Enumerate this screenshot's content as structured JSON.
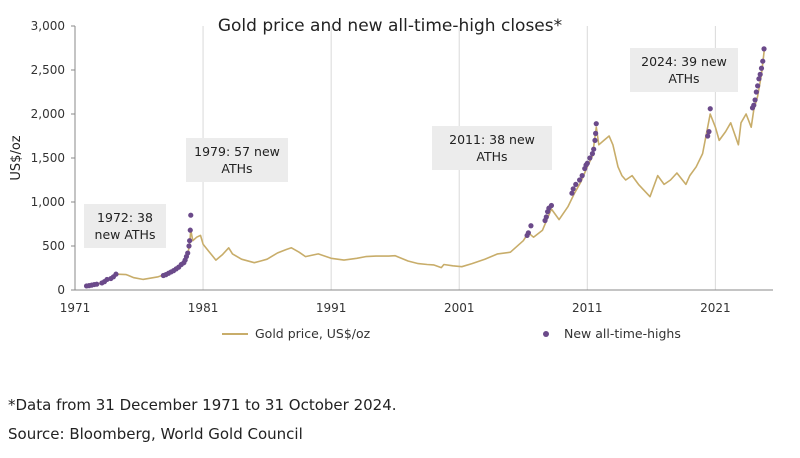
{
  "chart_data": {
    "type": "line",
    "title": "Gold price and new all-time-high closes*",
    "ylabel": "US$/oz",
    "xlabel": "",
    "ylim": [
      0,
      3000
    ],
    "xlim": [
      1971,
      2025.5
    ],
    "y_ticks": [
      0,
      500,
      1000,
      1500,
      2000,
      2500,
      3000
    ],
    "y_tick_labels": [
      "0",
      "500",
      "1,000",
      "1,500",
      "2,000",
      "2,500",
      "3,000"
    ],
    "x_ticks": [
      1971,
      1981,
      1991,
      2001,
      2011,
      2021
    ],
    "x_tick_labels": [
      "1971",
      "1981",
      "1991",
      "2001",
      "2011",
      "2021"
    ],
    "grid": "vertical",
    "legend_position": "bottom",
    "colors": {
      "line": "#c8ad6a",
      "ath": "#6b4a8a",
      "callout_bg": "#ececec",
      "grid": "#d9d9d9"
    },
    "series": [
      {
        "name": "Gold price, US$/oz",
        "x": [
          1971.9,
          1972.5,
          1973.2,
          1973.5,
          1974.0,
          1974.3,
          1975.0,
          1975.6,
          1976.3,
          1976.7,
          1977.5,
          1978.0,
          1978.6,
          1979.0,
          1979.5,
          1979.8,
          1979.95,
          1980.04,
          1980.2,
          1980.5,
          1980.8,
          1981.0,
          1981.5,
          1982.0,
          1982.5,
          1983.0,
          1983.3,
          1984.0,
          1985.0,
          1985.5,
          1986.0,
          1986.8,
          1987.5,
          1987.9,
          1988.5,
          1989.0,
          1990.0,
          1991.0,
          1992.0,
          1993.0,
          1993.7,
          1994.5,
          1995.5,
          1996.0,
          1997.0,
          1997.8,
          1998.5,
          1999.0,
          1999.6,
          1999.8,
          2000.5,
          2001.2,
          2002.0,
          2003.0,
          2004.0,
          2005.0,
          2006.0,
          2006.4,
          2006.8,
          2007.5,
          2008.2,
          2008.8,
          2009.5,
          2010.0,
          2010.5,
          2011.0,
          2011.4,
          2011.7,
          2011.9,
          2012.3,
          2012.7,
          2013.0,
          2013.4,
          2013.7,
          2014.0,
          2014.5,
          2015.0,
          2015.9,
          2016.5,
          2017.0,
          2017.5,
          2018.0,
          2018.7,
          2019.0,
          2019.5,
          2020.0,
          2020.6,
          2021.0,
          2021.3,
          2021.8,
          2022.2,
          2022.8,
          2023.0,
          2023.4,
          2023.8,
          2024.0,
          2024.3,
          2024.6,
          2024.83
        ],
        "values": [
          46,
          60,
          85,
          120,
          140,
          180,
          175,
          140,
          120,
          130,
          150,
          175,
          215,
          240,
          300,
          400,
          520,
          680,
          560,
          600,
          620,
          520,
          430,
          340,
          400,
          480,
          410,
          350,
          310,
          330,
          350,
          420,
          460,
          480,
          430,
          380,
          410,
          360,
          340,
          360,
          380,
          385,
          385,
          390,
          330,
          300,
          290,
          285,
          255,
          290,
          275,
          265,
          300,
          350,
          410,
          430,
          560,
          650,
          600,
          680,
          920,
          800,
          950,
          1100,
          1230,
          1400,
          1520,
          1850,
          1650,
          1700,
          1750,
          1650,
          1400,
          1300,
          1250,
          1300,
          1200,
          1060,
          1300,
          1200,
          1250,
          1330,
          1200,
          1300,
          1400,
          1550,
          2000,
          1850,
          1700,
          1800,
          1900,
          1650,
          1900,
          2000,
          1850,
          2050,
          2200,
          2450,
          2740
        ]
      },
      {
        "name": "New all-time-highs",
        "x": [
          1971.9,
          1972.1,
          1972.3,
          1972.5,
          1972.7,
          1973.1,
          1973.3,
          1973.5,
          1973.8,
          1974.0,
          1974.2,
          1977.9,
          1978.1,
          1978.3,
          1978.5,
          1978.7,
          1978.9,
          1979.1,
          1979.3,
          1979.5,
          1979.6,
          1979.7,
          1979.8,
          1979.9,
          1979.95,
          1980.0,
          1980.04,
          2006.3,
          2006.4,
          2006.6,
          2007.7,
          2007.8,
          2007.9,
          2008.0,
          2008.2,
          2009.8,
          2009.9,
          2010.1,
          2010.4,
          2010.6,
          2010.8,
          2010.9,
          2011.0,
          2011.2,
          2011.4,
          2011.5,
          2011.6,
          2011.65,
          2011.7,
          2020.4,
          2020.5,
          2020.6,
          2023.9,
          2024.0,
          2024.1,
          2024.2,
          2024.3,
          2024.4,
          2024.5,
          2024.6,
          2024.7,
          2024.8
        ],
        "values": [
          46,
          50,
          55,
          62,
          66,
          80,
          95,
          120,
          130,
          150,
          180,
          165,
          175,
          190,
          205,
          220,
          240,
          260,
          290,
          310,
          340,
          380,
          420,
          500,
          560,
          680,
          850,
          620,
          650,
          730,
          790,
          830,
          890,
          930,
          960,
          1100,
          1150,
          1200,
          1250,
          1300,
          1380,
          1420,
          1440,
          1500,
          1550,
          1600,
          1700,
          1780,
          1890,
          1750,
          1800,
          2060,
          2070,
          2100,
          2160,
          2250,
          2320,
          2400,
          2450,
          2520,
          2600,
          2740
        ]
      }
    ],
    "annotations": [
      {
        "text_line1": "1972: 38",
        "text_line2": "new ATHs"
      },
      {
        "text_line1": "1979: 57 new",
        "text_line2": "ATHs"
      },
      {
        "text_line1": "2011: 38 new",
        "text_line2": "ATHs"
      },
      {
        "text_line1": "2024: 39 new",
        "text_line2": "ATHs"
      }
    ]
  },
  "footnote": "*Data from 31 December 1971 to 31 October 2024.",
  "source": "Source: Bloomberg, World Gold Council"
}
